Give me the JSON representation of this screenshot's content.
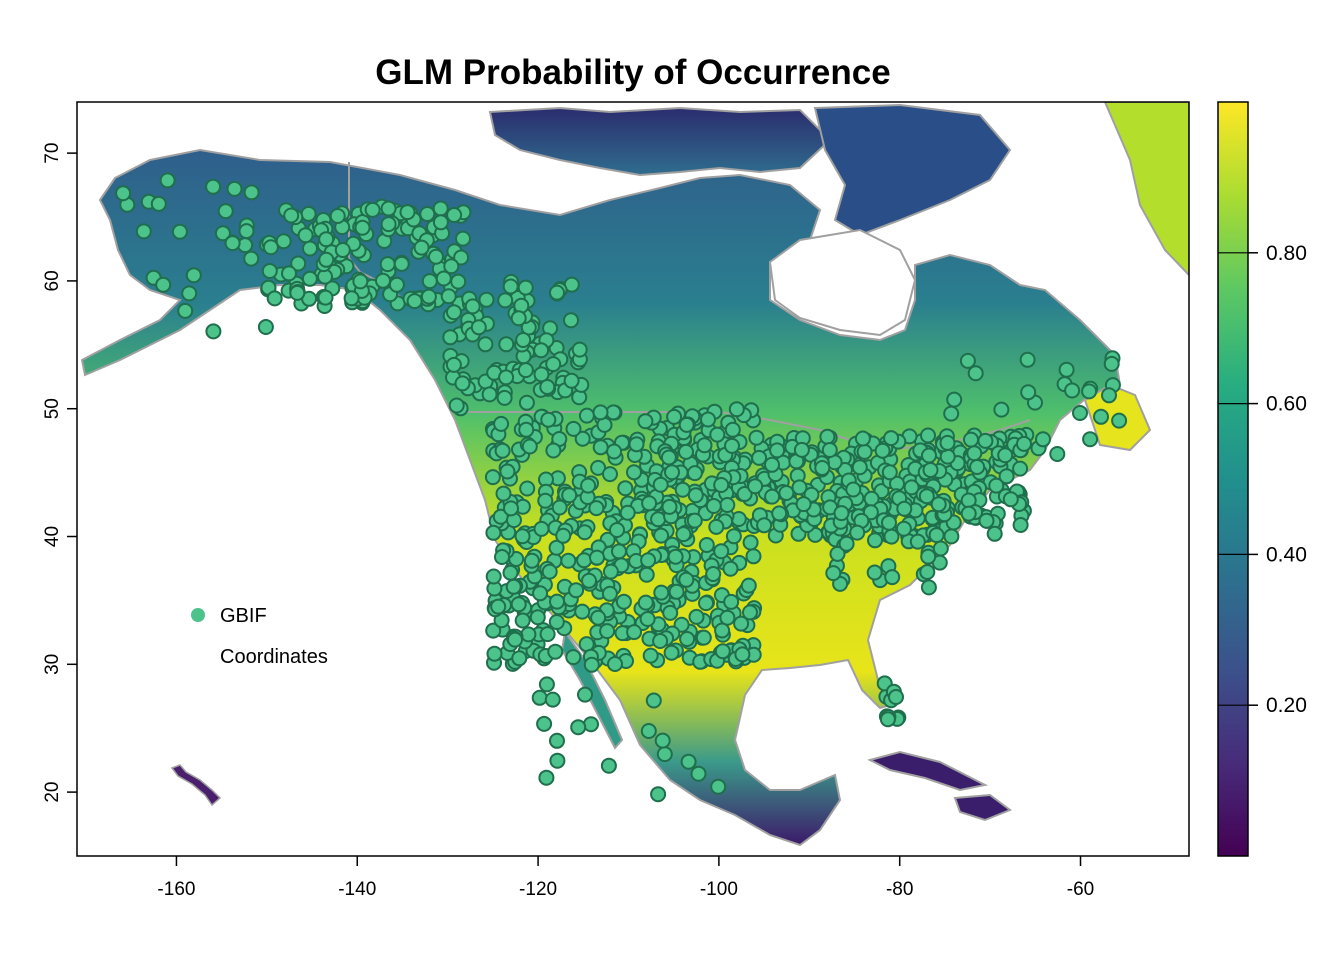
{
  "title": "GLM Probability of Occurrence",
  "map": {
    "lon_range": [
      -171,
      -48
    ],
    "lat_range": [
      15,
      74
    ],
    "x_ticks": [
      {
        "value": -160,
        "label": "-160"
      },
      {
        "value": -140,
        "label": "-140"
      },
      {
        "value": -120,
        "label": "-120"
      },
      {
        "value": -100,
        "label": "-100"
      },
      {
        "value": -80,
        "label": "-80"
      },
      {
        "value": -60,
        "label": "-60"
      }
    ],
    "y_ticks": [
      {
        "value": 20,
        "label": "20"
      },
      {
        "value": 30,
        "label": "30"
      },
      {
        "value": 40,
        "label": "40"
      },
      {
        "value": 50,
        "label": "50"
      },
      {
        "value": 60,
        "label": "60"
      },
      {
        "value": 70,
        "label": "70"
      }
    ],
    "ocean_color": "#ffffff",
    "border_color": "#a0a0a0"
  },
  "colorbar": {
    "palette": "viridis",
    "colors": [
      "#440154",
      "#472c7a",
      "#3b528b",
      "#2c728e",
      "#21908d",
      "#27ad81",
      "#5cc863",
      "#aadc32",
      "#fde725"
    ],
    "range": [
      0,
      1
    ],
    "ticks": [
      {
        "value": 0.2,
        "label": "0.20"
      },
      {
        "value": 0.4,
        "label": "0.40"
      },
      {
        "value": 0.6,
        "label": "0.60"
      },
      {
        "value": 0.8,
        "label": "0.80"
      }
    ]
  },
  "points_style": {
    "fill": "#4cc38a",
    "stroke": "#1f6e4c"
  },
  "legend": {
    "marker_color": "#4cc38a",
    "line1": "GBIF",
    "line2": "Coordinates"
  }
}
